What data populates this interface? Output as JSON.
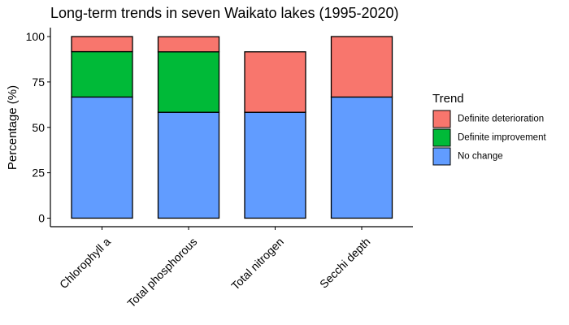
{
  "chart_data": {
    "type": "bar",
    "stacked": true,
    "title": "Long-term trends in seven Waikato lakes (1995-2020)",
    "xlabel": "",
    "ylabel": "Percentage (%)",
    "ylim": [
      0,
      105
    ],
    "yticks": [
      0,
      25,
      50,
      75,
      100
    ],
    "grid": false,
    "categories": [
      "Chlorophyll a",
      "Total phosphorous",
      "Total nitrogen",
      "Secchi depth"
    ],
    "series": [
      {
        "name": "No change",
        "color": "#619CFF",
        "values": [
          66.7,
          58.3,
          58.3,
          66.7
        ]
      },
      {
        "name": "Definite improvement",
        "color": "#00BA38",
        "values": [
          25.0,
          33.3,
          0,
          0
        ]
      },
      {
        "name": "Definite deterioration",
        "color": "#F8766D",
        "values": [
          8.3,
          8.3,
          33.3,
          33.3
        ]
      }
    ],
    "legend": {
      "title": "Trend",
      "position": "right",
      "order": [
        "Definite deterioration",
        "Definite improvement",
        "No change"
      ]
    }
  }
}
